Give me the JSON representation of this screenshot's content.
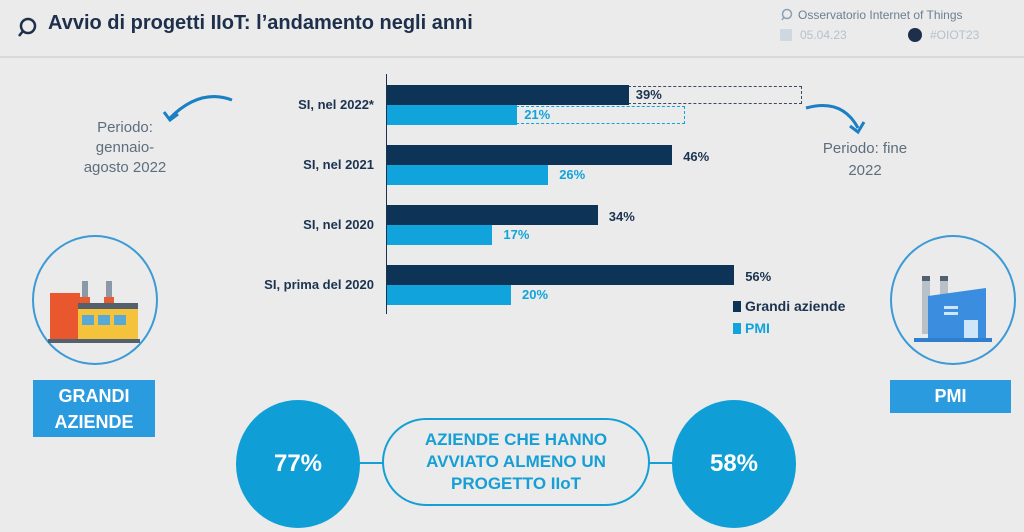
{
  "header": {
    "title": "Avvio di progetti IIoT: l’andamento negli anni",
    "brand": "Osservatorio Internet of Things",
    "date": "05.04.23",
    "hashtag": "#OIOT23"
  },
  "notes": {
    "left": "Periodo: gennaio-agosto 2022",
    "left_lines": [
      "Periodo:",
      "gennaio-",
      "agosto 2022"
    ],
    "right_lines": [
      "Periodo: fine",
      "2022"
    ]
  },
  "colors": {
    "grandi": "#0d3356",
    "pmi": "#10a3dc",
    "accent": "#2b9be0"
  },
  "chart_data": {
    "type": "bar",
    "orientation": "horizontal",
    "categories": [
      "SI, nel 2022*",
      "SI, nel 2021",
      "SI, nel 2020",
      "SI, prima del 2020"
    ],
    "series": [
      {
        "name": "Grandi aziende",
        "values": [
          39,
          46,
          34,
          56
        ],
        "labels": [
          "39%",
          "46%",
          "34%",
          "56%"
        ]
      },
      {
        "name": "PMI",
        "values": [
          21,
          26,
          17,
          20
        ],
        "labels": [
          "21%",
          "26%",
          "17%",
          "20%"
        ]
      }
    ],
    "projected_2022_end": {
      "Grandi aziende": 67,
      "PMI": 48
    },
    "xlim": [
      0,
      100
    ],
    "legend": "bottom-right"
  },
  "left_panel": {
    "label_lines": [
      "GRANDI",
      "AZIENDE"
    ],
    "value": "77%"
  },
  "right_panel": {
    "label": "PMI",
    "value": "58%"
  },
  "center_text_lines": [
    "AZIENDE CHE HANNO",
    "AVVIATO ALMENO UN",
    "PROGETTO IIoT"
  ]
}
